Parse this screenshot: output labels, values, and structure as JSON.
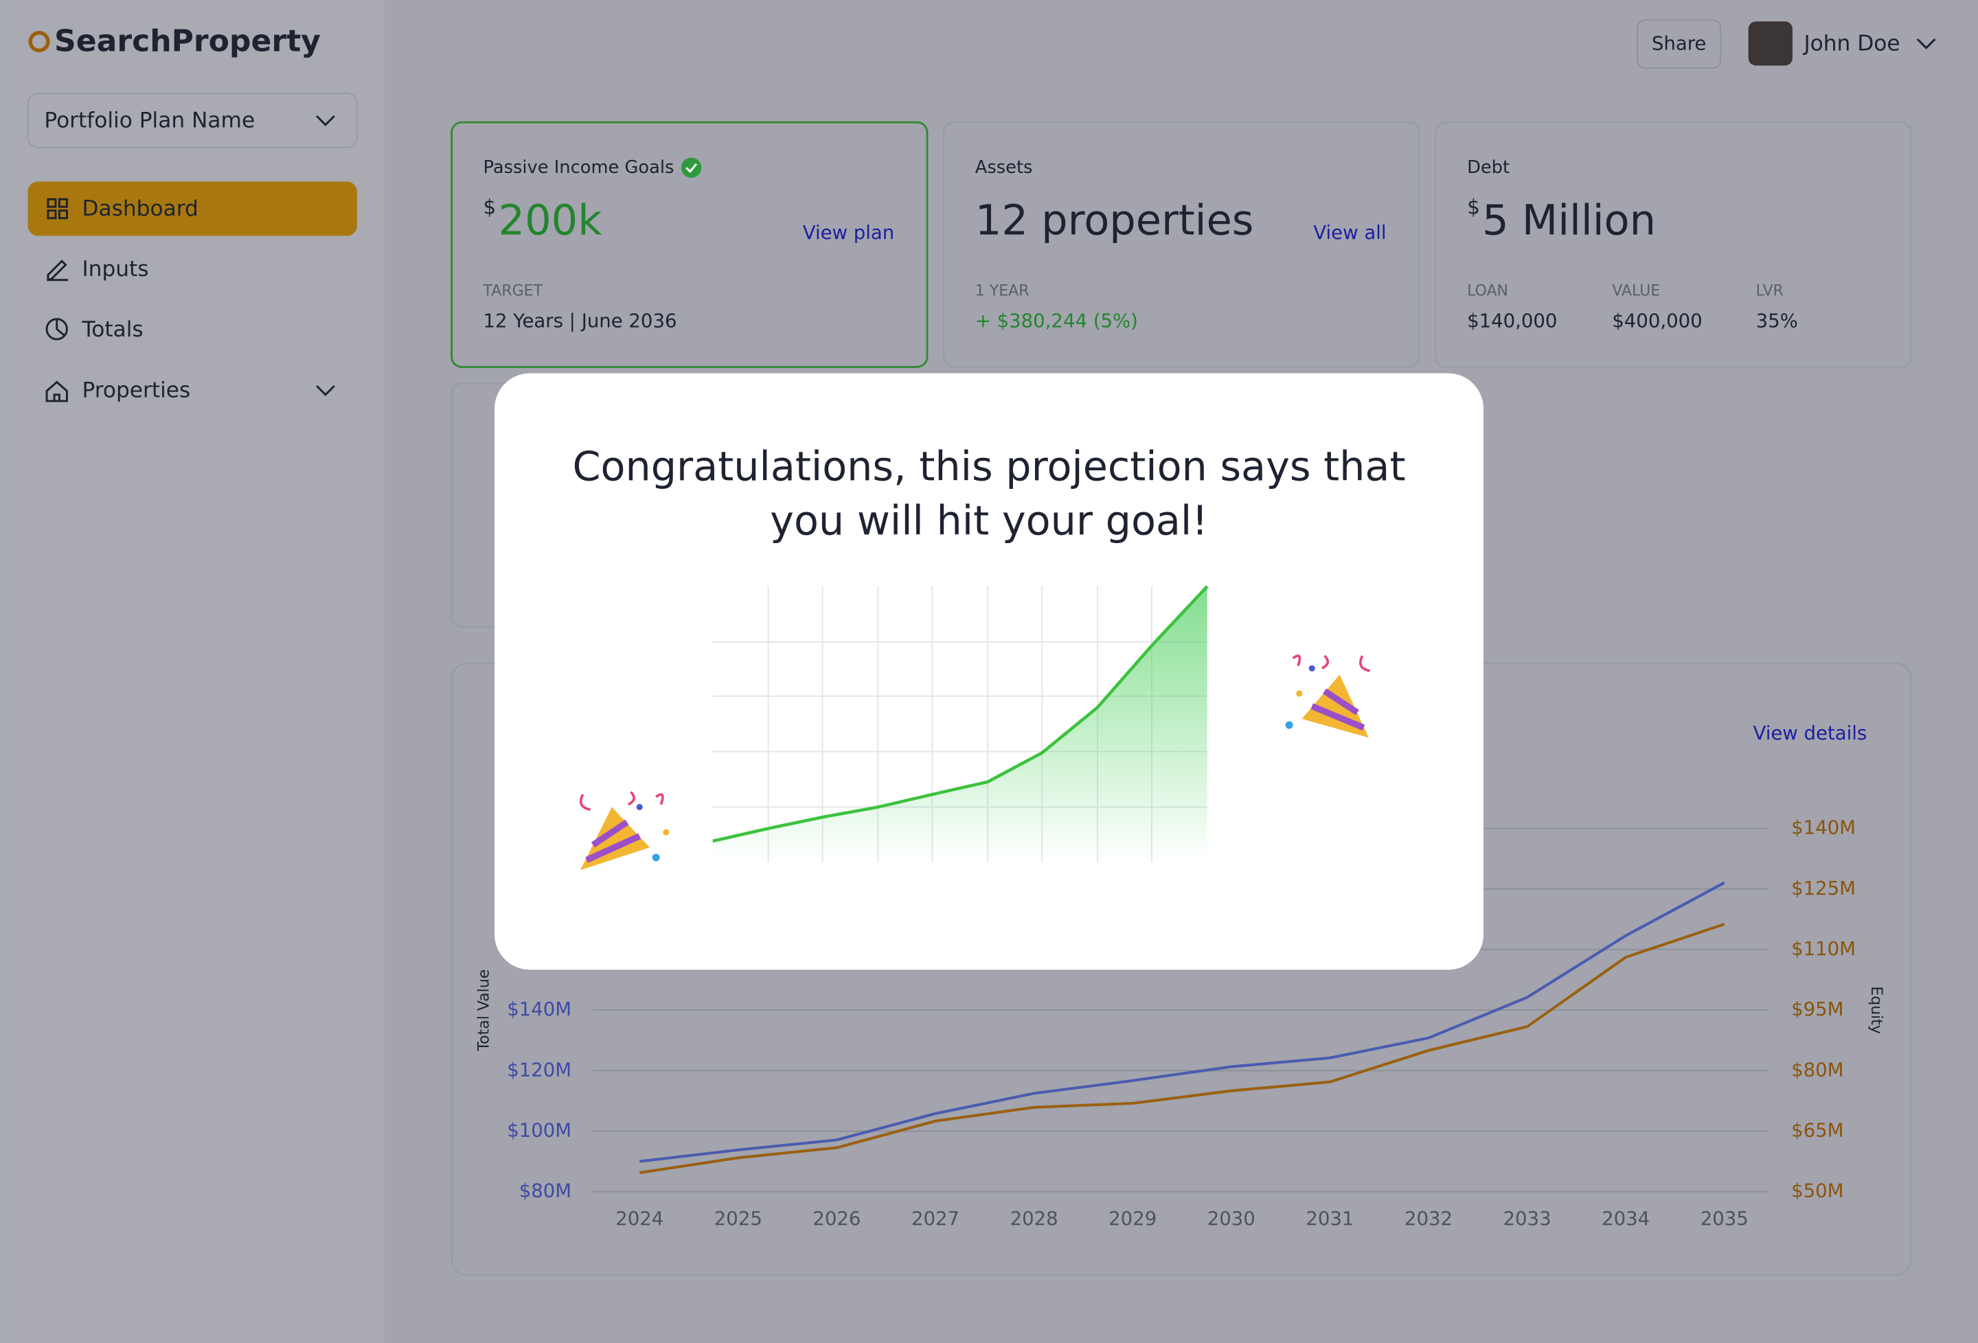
{
  "brand": {
    "name": "SearchProperty"
  },
  "sidebar": {
    "plan_select": "Portfolio Plan Name",
    "nav": [
      "Dashboard",
      "Inputs",
      "Totals",
      "Properties"
    ]
  },
  "header": {
    "share": "Share",
    "user": "John Doe"
  },
  "cards": [
    {
      "title": "Passive Income Goals",
      "currency": "$",
      "value": "200k",
      "link": "View plan",
      "sub_label": "TARGET",
      "sub_value": "12 Years | June 2036"
    },
    {
      "title": "Assets",
      "value": "12 properties",
      "link": "View all",
      "sub_label": "1 YEAR",
      "sub_value": "+ $380,244 (5%)"
    },
    {
      "title": "Debt",
      "currency": "$",
      "value": "5 Million",
      "stats": [
        {
          "label": "LOAN",
          "value": "$140,000"
        },
        {
          "label": "VALUE",
          "value": "$400,000"
        },
        {
          "label": "LVR",
          "value": "35%"
        }
      ]
    }
  ],
  "chart_card": {
    "link": "View details"
  },
  "chart_data": {
    "type": "line",
    "y_label": "Total Value",
    "y2_label": "Equity",
    "categories": [
      "2024",
      "2025",
      "2026",
      "2027",
      "2028",
      "2029",
      "2030",
      "2031",
      "2032",
      "2033",
      "2034",
      "2035"
    ],
    "series": [
      {
        "color": "#4a5bb0",
        "values": [
          90,
          93.8,
          97.1,
          105.8,
          112.5,
          116.7,
          121.3,
          124.2,
          130.8,
          144.2,
          164.6,
          182.1
        ]
      },
      {
        "color": "#9a600f",
        "axis": "y2",
        "values": [
          54.7,
          58.4,
          60.9,
          67.5,
          70.9,
          71.9,
          75,
          77.2,
          85,
          90.9,
          108.1,
          116.3
        ]
      }
    ],
    "ylim": [
      80,
      200
    ],
    "yticks": [
      {
        "value": 80,
        "label": "$80M"
      },
      {
        "value": 100,
        "label": "$100M"
      },
      {
        "value": 120,
        "label": "$120M"
      },
      {
        "value": 140,
        "label": "$140M"
      }
    ],
    "y2lim": [
      50,
      140
    ],
    "y2ticks": [
      {
        "value": 50,
        "label": "$50M"
      },
      {
        "value": 65,
        "label": "$65M"
      },
      {
        "value": 80,
        "label": "$80M"
      },
      {
        "value": 95,
        "label": "$95M"
      },
      {
        "value": 110,
        "label": "$110M"
      },
      {
        "value": 125,
        "label": "$125M"
      },
      {
        "value": 140,
        "label": "$140M"
      }
    ],
    "grid": true
  },
  "modal": {
    "message_line1": "Congratulations, this projection says that",
    "message_line2": "you will hit your goal!"
  }
}
